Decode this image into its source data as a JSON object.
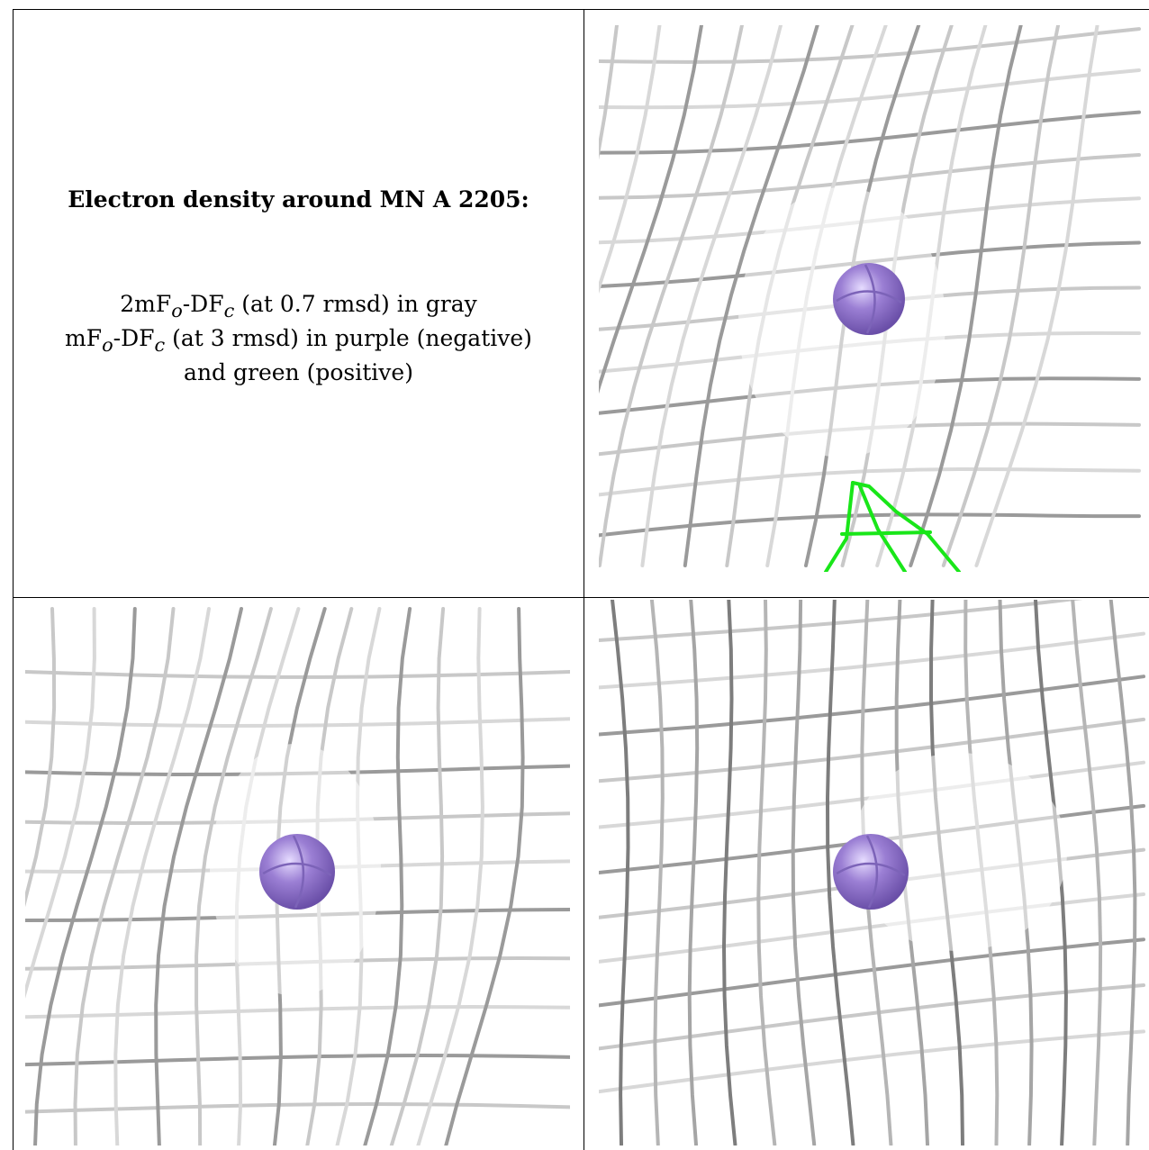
{
  "caption": {
    "title": "Electron density around MN A 2205:",
    "lines": [
      "2mFo-DFc (at 0.7 rmsd) in gray",
      "mFo-DFc (at 3 rmsd) in purple (negative)",
      "and green (positive)"
    ],
    "rich": {
      "line1_a": "2mF",
      "line1_sub1": "o",
      "line1_b": "-DF",
      "line1_sub2": "c",
      "line1_c": " (at 0.7 rmsd) in gray",
      "line2_a": "mF",
      "line2_sub1": "o",
      "line2_b": "-DF",
      "line2_sub2": "c",
      "line2_c": " (at 3 rmsd) in purple (negative)",
      "line3": "and green (positive)"
    }
  },
  "colors": {
    "mesh_gray": "#a9a9a9",
    "mesh_dark": "#555555",
    "mn_sphere": "#9b7fd4",
    "positive_green": "#19e619",
    "negative_purple": "#8a5cd6"
  },
  "atom": "MN A 2205"
}
